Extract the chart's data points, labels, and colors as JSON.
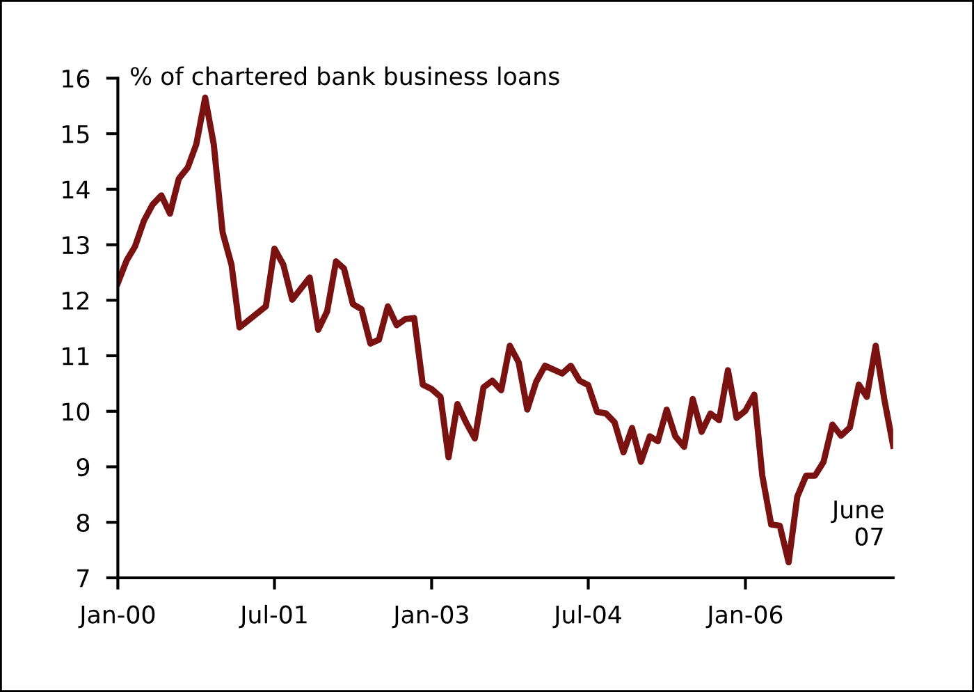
{
  "chart_data": {
    "type": "line",
    "ylabel": "% of chartered bank business loans",
    "x": [
      "2000-01",
      "2000-02",
      "2000-03",
      "2000-04",
      "2000-05",
      "2000-06",
      "2000-07",
      "2000-08",
      "2000-09",
      "2000-10",
      "2000-11",
      "2000-12",
      "2001-01",
      "2001-02",
      "2001-03",
      "2001-06",
      "2001-07",
      "2001-08",
      "2001-09",
      "2001-11",
      "2001-12",
      "2002-01",
      "2002-02",
      "2002-03",
      "2002-04",
      "2002-05",
      "2002-06",
      "2002-07",
      "2002-08",
      "2002-09",
      "2002-10",
      "2002-11",
      "2002-12",
      "2003-01",
      "2003-02",
      "2003-03",
      "2003-04",
      "2003-05",
      "2003-06",
      "2003-07",
      "2003-08",
      "2003-09",
      "2003-10",
      "2003-11",
      "2003-12",
      "2004-01",
      "2004-02",
      "2004-04",
      "2004-05",
      "2004-06",
      "2004-07",
      "2004-08",
      "2004-09",
      "2004-10",
      "2004-11",
      "2004-12",
      "2005-01",
      "2005-02",
      "2005-03",
      "2005-04",
      "2005-05",
      "2005-06",
      "2005-07",
      "2005-08",
      "2005-09",
      "2005-10",
      "2005-11",
      "2005-12",
      "2006-01",
      "2006-02",
      "2006-03",
      "2006-04",
      "2006-05",
      "2006-06",
      "2006-07",
      "2006-08",
      "2006-09",
      "2006-10",
      "2006-11",
      "2006-12",
      "2007-01",
      "2007-02",
      "2007-03",
      "2007-04",
      "2007-05",
      "2007-06"
    ],
    "series": [
      {
        "color": "#7a1212",
        "values": [
          12.31,
          12.72,
          12.97,
          13.43,
          13.72,
          13.89,
          13.56,
          14.19,
          14.39,
          14.81,
          15.65,
          14.81,
          13.22,
          12.64,
          11.51,
          11.89,
          12.93,
          12.64,
          12.01,
          12.41,
          11.47,
          11.8,
          12.7,
          12.57,
          11.93,
          11.84,
          11.22,
          11.29,
          11.89,
          11.55,
          11.66,
          11.68,
          10.48,
          10.4,
          10.26,
          9.17,
          10.13,
          9.8,
          9.51,
          10.43,
          10.55,
          10.38,
          11.18,
          10.88,
          10.03,
          10.53,
          10.82,
          10.68,
          10.82,
          10.55,
          10.47,
          9.99,
          9.96,
          9.8,
          9.26,
          9.7,
          9.09,
          9.55,
          9.46,
          10.03,
          9.55,
          9.36,
          10.22,
          9.63,
          9.96,
          9.84,
          10.74,
          9.88,
          10.01,
          10.3,
          8.84,
          7.96,
          7.94,
          7.28,
          8.46,
          8.84,
          8.84,
          9.09,
          9.76,
          9.56,
          9.71,
          10.48,
          10.26,
          11.18,
          10.22,
          9.38
        ]
      }
    ],
    "xlim": [
      "2000-01",
      "2007-06"
    ],
    "xticks": [
      {
        "value": "2000-01",
        "label": "Jan-00"
      },
      {
        "value": "2001-07",
        "label": "Jul-01"
      },
      {
        "value": "2003-01",
        "label": "Jan-03"
      },
      {
        "value": "2004-07",
        "label": "Jul-04"
      },
      {
        "value": "2006-01",
        "label": "Jan-06"
      }
    ],
    "ylim": [
      7,
      16
    ],
    "yticks": [
      7,
      8,
      9,
      10,
      11,
      12,
      13,
      14,
      15,
      16
    ],
    "annotations": [
      {
        "text": "June\n07",
        "x": "2007-06",
        "y": 9.38
      }
    ],
    "grid": false,
    "legend": false,
    "marker": "none",
    "line_style": "solid"
  }
}
